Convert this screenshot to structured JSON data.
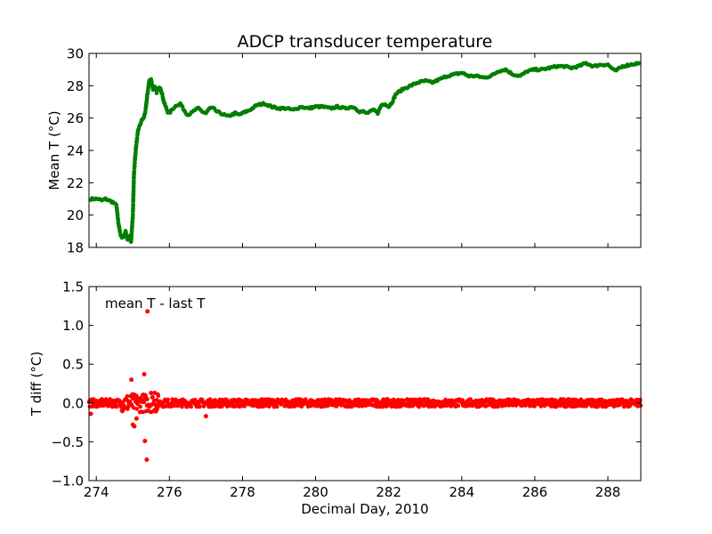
{
  "figure_title": "ADCP transducer temperature",
  "chart_data": [
    {
      "type": "scatter",
      "title": "ADCP transducer temperature",
      "xlabel": "",
      "ylabel": "Mean T (°C)",
      "xlim": [
        273.8,
        288.9
      ],
      "ylim": [
        18,
        30
      ],
      "yticks": [
        18,
        20,
        22,
        24,
        26,
        28,
        30
      ],
      "ytick_labels": [
        "18",
        "20",
        "22",
        "24",
        "26",
        "28",
        "30"
      ],
      "xtick_labels_visible": false,
      "grid": false,
      "color": "#007f00",
      "series": [
        {
          "x": [
            273.85,
            273.95,
            274.05,
            274.15,
            274.25,
            274.35,
            274.45,
            274.55,
            274.6,
            274.65,
            274.7,
            274.75,
            274.8,
            274.85,
            274.9,
            274.95,
            275.0,
            275.03,
            275.06,
            275.09,
            275.12,
            275.15,
            275.2,
            275.25,
            275.3,
            275.35,
            275.4,
            275.45,
            275.5,
            275.55,
            275.6,
            275.65,
            275.7,
            275.75,
            275.8,
            275.85,
            275.9,
            275.95,
            276.0,
            276.1,
            276.2,
            276.3,
            276.4,
            276.5,
            276.6,
            276.7,
            276.8,
            276.9,
            277.0,
            277.1,
            277.2,
            277.3,
            277.4,
            277.5,
            277.6,
            277.7,
            277.8,
            277.9,
            278.0,
            278.2,
            278.4,
            278.6,
            278.8,
            279.0,
            279.2,
            279.4,
            279.6,
            279.8,
            280.0,
            280.2,
            280.4,
            280.6,
            280.8,
            281.0,
            281.1,
            281.2,
            281.3,
            281.4,
            281.5,
            281.6,
            281.7,
            281.8,
            281.9,
            282.0,
            282.1,
            282.2,
            282.4,
            282.6,
            282.8,
            283.0,
            283.2,
            283.4,
            283.6,
            283.8,
            284.0,
            284.2,
            284.4,
            284.6,
            284.8,
            285.0,
            285.2,
            285.4,
            285.6,
            285.8,
            286.0,
            286.2,
            286.4,
            286.6,
            286.8,
            287.0,
            287.2,
            287.4,
            287.6,
            287.8,
            288.0,
            288.2,
            288.4,
            288.6,
            288.85
          ],
          "y": [
            21.0,
            21.0,
            21.0,
            20.9,
            21.0,
            20.9,
            20.8,
            20.6,
            19.6,
            18.9,
            18.6,
            18.7,
            19.0,
            18.5,
            18.7,
            18.3,
            20.0,
            22.5,
            23.5,
            24.3,
            24.8,
            25.3,
            25.6,
            25.9,
            26.0,
            26.5,
            27.5,
            28.3,
            28.4,
            27.8,
            27.9,
            27.6,
            27.8,
            27.9,
            27.5,
            27.0,
            26.7,
            26.4,
            26.3,
            26.6,
            26.8,
            26.9,
            26.5,
            26.2,
            26.3,
            26.5,
            26.6,
            26.4,
            26.3,
            26.6,
            26.6,
            26.4,
            26.3,
            26.2,
            26.1,
            26.2,
            26.3,
            26.2,
            26.3,
            26.5,
            26.8,
            26.9,
            26.7,
            26.6,
            26.6,
            26.5,
            26.7,
            26.6,
            26.7,
            26.7,
            26.6,
            26.7,
            26.6,
            26.7,
            26.6,
            26.4,
            26.4,
            26.3,
            26.4,
            26.5,
            26.3,
            26.8,
            26.9,
            26.7,
            27.0,
            27.5,
            27.8,
            28.0,
            28.2,
            28.3,
            28.2,
            28.4,
            28.6,
            28.7,
            28.8,
            28.6,
            28.6,
            28.5,
            28.6,
            28.9,
            29.0,
            28.7,
            28.6,
            28.9,
            29.0,
            29.0,
            29.1,
            29.2,
            29.2,
            29.1,
            29.2,
            29.4,
            29.2,
            29.3,
            29.3,
            28.9,
            29.2,
            29.3,
            29.4
          ]
        }
      ]
    },
    {
      "type": "scatter",
      "title": "",
      "xlabel": "Decimal Day, 2010",
      "ylabel": "T diff (°C)",
      "annotation": "mean T - last T",
      "xlim": [
        273.8,
        288.9
      ],
      "ylim": [
        -1.0,
        1.5
      ],
      "xticks": [
        274,
        276,
        278,
        280,
        282,
        284,
        286,
        288
      ],
      "xtick_labels": [
        "274",
        "276",
        "278",
        "280",
        "282",
        "284",
        "286",
        "288"
      ],
      "yticks": [
        -1.0,
        -0.5,
        0.0,
        0.5,
        1.0,
        1.5
      ],
      "ytick_labels": [
        "−1.0",
        "−0.5",
        "0.0",
        "0.5",
        "1.0",
        "1.5"
      ],
      "grid": false,
      "color": "#ff0000",
      "noise_band": 0.05,
      "series": [
        {
          "outliers_x": [
            275.4,
            275.38,
            274.96,
            275.31,
            275.33,
            275.0,
            275.04,
            275.1,
            275.5,
            275.6,
            277.0,
            273.85
          ],
          "outliers_y": [
            1.18,
            -0.73,
            0.3,
            0.37,
            -0.49,
            -0.28,
            -0.3,
            -0.2,
            0.13,
            0.13,
            -0.17,
            -0.14
          ]
        }
      ]
    }
  ]
}
